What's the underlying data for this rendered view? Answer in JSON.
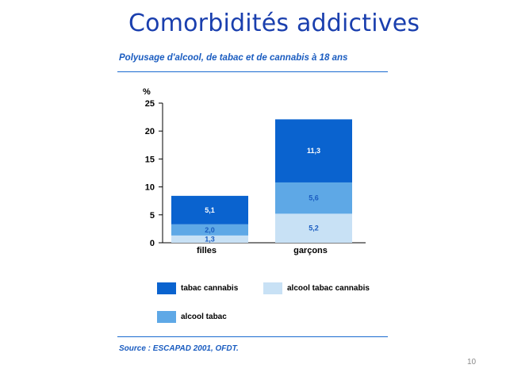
{
  "slide": {
    "title": "Comorbidités addictives",
    "page_number": "10"
  },
  "figure": {
    "title": "Polyusage d'alcool, de tabac et de cannabis à 18 ans",
    "source": "Source : ESCAPAD 2001, OFDT."
  },
  "colors": {
    "title": "#1a3fae",
    "tabac_cannabis": "#0a63cf",
    "alcool_tabac": "#5ea8e6",
    "alcool_tabac_cannabis": "#c8e1f5"
  },
  "chart_data": {
    "type": "bar",
    "stacked": true,
    "title": "Polyusage d'alcool, de tabac et de cannabis à 18 ans",
    "ylabel": "%",
    "xlabel": "",
    "ylim": [
      0,
      25
    ],
    "yticks": [
      "0",
      "5",
      "10",
      "15",
      "20",
      "25"
    ],
    "categories": [
      "filles",
      "garçons"
    ],
    "series": [
      {
        "name": "alcool tabac cannabis",
        "values": [
          1.3,
          5.2
        ],
        "labels": [
          "1,3",
          "5,2"
        ]
      },
      {
        "name": "alcool tabac",
        "values": [
          2.0,
          5.6
        ],
        "labels": [
          "2,0",
          "5,6"
        ]
      },
      {
        "name": "tabac cannabis",
        "values": [
          5.1,
          11.3
        ],
        "labels": [
          "5,1",
          "11,3"
        ]
      }
    ],
    "legend": [
      "tabac cannabis",
      "alcool tabac cannabis",
      "alcool tabac"
    ]
  }
}
